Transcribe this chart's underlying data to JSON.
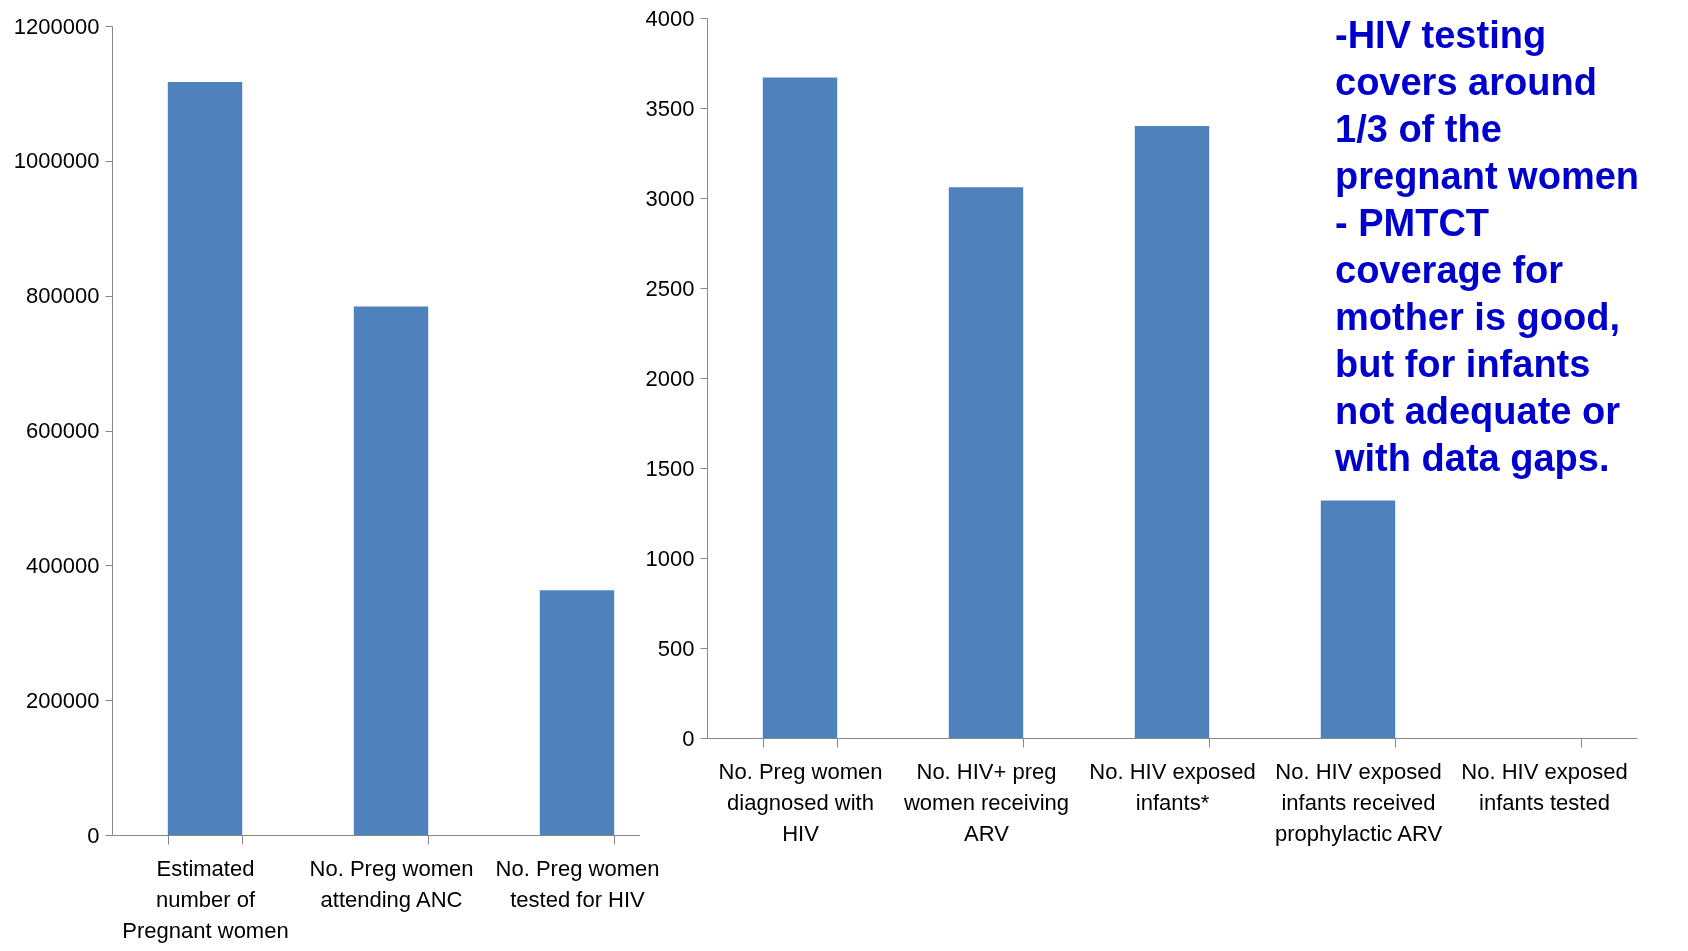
{
  "chart_data": [
    {
      "type": "bar",
      "categories": [
        "Estimated number of Pregnant women",
        "No. Preg women attending ANC",
        "No. Preg women tested for HIV"
      ],
      "series": [
        {
          "color": "#4f81bd",
          "values": [
            1117000,
            784000,
            363000
          ]
        }
      ],
      "ylim": [
        0,
        1200000
      ],
      "yticks": [
        0,
        200000,
        400000,
        600000,
        800000,
        1000000,
        1200000
      ],
      "grid": false,
      "legend": false
    },
    {
      "type": "bar",
      "categories": [
        "No. Preg women diagnosed with HIV",
        "No. HIV+ preg women receiving ARV",
        "No. HIV exposed infants*",
        "No. HIV exposed infants received prophylactic ARV",
        "No. HIV exposed infants tested"
      ],
      "series": [
        {
          "color": "#4f81bd",
          "values": [
            3670,
            3060,
            3400,
            1320,
            null
          ]
        }
      ],
      "ylim": [
        0,
        4000
      ],
      "yticks": [
        0,
        500,
        1000,
        1500,
        2000,
        2500,
        3000,
        3500,
        4000
      ],
      "grid": false,
      "legend": false,
      "annotations": [
        "-HIV testing covers around 1/3 of the pregnant women - PMTCT coverage for mother is good, but for infants not adequate or with data gaps."
      ]
    }
  ]
}
